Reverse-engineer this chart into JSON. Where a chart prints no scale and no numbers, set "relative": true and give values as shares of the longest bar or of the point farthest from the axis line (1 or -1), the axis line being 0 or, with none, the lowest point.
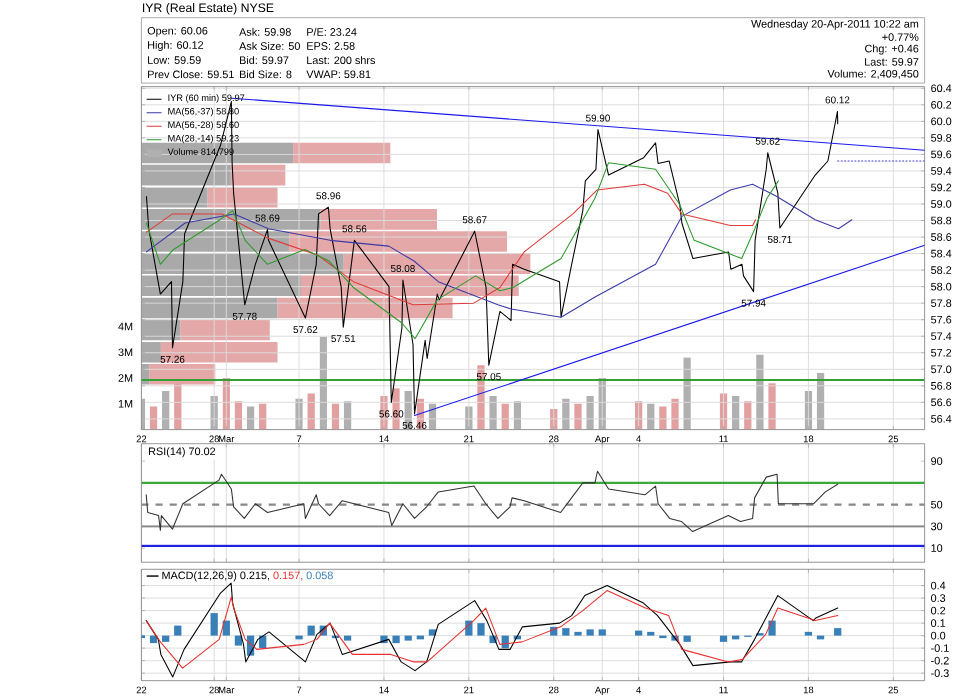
{
  "chart_data": [
    {
      "type": "line",
      "title": "IYR (Real Estate) NYSE",
      "annotations": [
        "Open: 60.06",
        "High: 60.12",
        "Low: 59.59",
        "Prev Close: 59.51",
        "Ask: 59.98",
        "Ask Size: 50",
        "Bid: 59.97",
        "Bid Size: 8",
        "P/E: 23.24",
        "EPS: 2.58",
        "Last: 200 shrs",
        "VWAP: 59.81",
        "Wednesday 20-Apr-2011 10:22 am",
        "+0.77%",
        "Chg: +0.46",
        "Last: 59.97",
        "Volume: 2,409,450",
        {
          "text": "57.26",
          "x": "2011-02-24T13:30",
          "y": 57.26
        },
        {
          "text": "57.78",
          "x": "2011-03-02T12:30",
          "y": 57.78
        },
        {
          "text": "58.69",
          "x": "2011-03-04T09:30",
          "y": 58.69
        },
        {
          "text": "57.62",
          "x": "2011-03-07T12:30",
          "y": 57.62
        },
        {
          "text": "58.96",
          "x": "2011-03-09T10:00",
          "y": 58.96
        },
        {
          "text": "57.51",
          "x": "2011-03-10T15:30",
          "y": 57.51
        },
        {
          "text": "58.56",
          "x": "2011-03-11T13:30",
          "y": 58.56
        },
        {
          "text": "56.60",
          "x": "2011-03-14T14:30",
          "y": 56.6
        },
        {
          "text": "58.08",
          "x": "2011-03-15T13:30",
          "y": 58.08
        },
        {
          "text": "56.46",
          "x": "2011-03-16T12:30",
          "y": 56.46
        },
        {
          "text": "58.67",
          "x": "2011-03-21T11:30",
          "y": 58.67
        },
        {
          "text": "57.05",
          "x": "2011-03-22T15:30",
          "y": 57.05
        },
        {
          "text": "59.90",
          "x": "2011-03-31T15:30",
          "y": 59.9
        },
        {
          "text": "57.94",
          "x": "2011-04-13T11:30",
          "y": 57.94
        },
        {
          "text": "59.62",
          "x": "2011-04-14T15:30",
          "y": 59.62
        },
        {
          "text": "58.71",
          "x": "2011-04-15T15:30",
          "y": 58.71
        },
        {
          "text": "60.12",
          "x": "2011-04-20T09:30",
          "y": 60.12
        }
      ],
      "xlim": [
        "2011-02-22",
        "2011-04-27T14:00"
      ],
      "ylim": [
        56.27,
        60.42
      ],
      "xticks": [
        {
          "value": "2011-02-22",
          "label": "22"
        },
        {
          "value": "2011-02-28",
          "label": "28"
        },
        {
          "value": "2011-03-01",
          "label": "Mar"
        },
        {
          "value": "2011-03-07",
          "label": "7"
        },
        {
          "value": "2011-03-14",
          "label": "14"
        },
        {
          "value": "2011-03-21",
          "label": "21"
        },
        {
          "value": "2011-03-28",
          "label": "28"
        },
        {
          "value": "2011-04-01",
          "label": "Apr"
        },
        {
          "value": "2011-04-04",
          "label": "4"
        },
        {
          "value": "2011-04-11",
          "label": "11"
        },
        {
          "value": "2011-04-18",
          "label": "18"
        },
        {
          "value": "2011-04-25",
          "label": "25"
        }
      ],
      "yticks": [
        56.4,
        56.6,
        56.8,
        {
          "value": 57,
          "label": "57.0"
        },
        57.2,
        57.4,
        57.6,
        57.8,
        {
          "value": 58,
          "label": "58.0"
        },
        58.2,
        58.4,
        58.6,
        58.8,
        {
          "value": 59,
          "label": "59.0"
        },
        59.2,
        59.4,
        59.6,
        59.8,
        {
          "value": 60,
          "label": "60.0"
        },
        60.2,
        60.4
      ],
      "y2lim": [
        0,
        13300000
      ],
      "y2ticks": [
        {
          "value": 1000000,
          "label": "1M"
        },
        {
          "value": 2000000,
          "label": "2M"
        },
        {
          "value": 3000000,
          "label": "3M"
        },
        {
          "value": 4000000,
          "label": "4M"
        }
      ],
      "grid": true,
      "legend": "top left",
      "ref_lines": [
        {
          "axis": "y",
          "value": 56.87,
          "color": "#33a033"
        }
      ],
      "series": [
        {
          "name": "IYR (60 min) 59.97",
          "type": "line",
          "color": "#000000",
          "x": [
            "2011-02-22T10:00",
            "2011-02-22T14:30",
            "2011-02-23T13:30",
            "2011-02-24T11:30",
            "2011-02-24T13:30",
            "2011-02-25T10:00",
            "2011-02-25T13:30",
            "2011-02-28T12:30",
            "2011-03-01T10:00",
            "2011-03-01T11:30",
            "2011-03-01T14:30",
            "2011-03-02T12:30",
            "2011-03-03T09:30",
            "2011-03-04T09:30",
            "2011-03-04T11:30",
            "2011-03-07T12:30",
            "2011-03-08T10:00",
            "2011-03-08T14:30",
            "2011-03-09T10:00",
            "2011-03-09T13:30",
            "2011-03-10T11:30",
            "2011-03-10T15:30",
            "2011-03-11T13:30",
            "2011-03-14T10:00",
            "2011-03-14T14:30",
            "2011-03-15T11:30",
            "2011-03-15T13:30",
            "2011-03-16T09:30",
            "2011-03-16T12:30",
            "2011-03-17T09:30",
            "2011-03-17T13:30",
            "2011-03-18T09:30",
            "2011-03-18T13:30",
            "2011-03-21T11:30",
            "2011-03-22T10:00",
            "2011-03-22T15:30",
            "2011-03-23T13:30",
            "2011-03-24T11:30",
            "2011-03-24T14:30",
            "2011-03-25T13:30",
            "2011-03-28T11:30",
            "2011-03-28T14:30",
            "2011-03-29T11:30",
            "2011-03-30T09:30",
            "2011-03-30T14:30",
            "2011-03-31T11:30",
            "2011-03-31T15:30",
            "2011-04-01T12:30",
            "2011-04-04T10:00",
            "2011-04-05T09:30",
            "2011-04-05T14:30",
            "2011-04-06T12:30",
            "2011-04-07T09:30",
            "2011-04-07T13:30",
            "2011-04-08T11:30",
            "2011-04-11T10:00",
            "2011-04-11T14:30",
            "2011-04-12T12:30",
            "2011-04-12T15:30",
            "2011-04-13T11:30",
            "2011-04-13T14:30",
            "2011-04-14T12:30",
            "2011-04-14T15:30",
            "2011-04-15T11:30",
            "2011-04-15T15:30",
            "2011-04-18T13:30",
            "2011-04-19T14:30",
            "2011-04-20T09:30",
            "2011-04-20T10:00"
          ],
          "values": [
            59.09,
            58.7,
            57.91,
            58.06,
            57.26,
            58.06,
            58.64,
            59.71,
            60.24,
            59.5,
            59.13,
            57.78,
            58.27,
            58.69,
            58.56,
            57.62,
            58.27,
            58.88,
            58.96,
            58.7,
            57.99,
            57.51,
            58.56,
            58.0,
            56.6,
            57.5,
            58.08,
            57.3,
            56.46,
            57.35,
            57.13,
            57.91,
            57.84,
            58.67,
            57.99,
            57.05,
            57.7,
            57.59,
            58.27,
            58.21,
            58.06,
            57.63,
            58.27,
            58.92,
            59.28,
            59.42,
            59.9,
            59.35,
            59.56,
            59.74,
            59.49,
            59.52,
            58.99,
            58.77,
            58.34,
            58.42,
            58.21,
            58.27,
            58.13,
            57.94,
            58.56,
            59.42,
            59.62,
            59.13,
            58.71,
            59.35,
            59.52,
            60.12,
            59.97
          ]
        },
        {
          "name": "MA(56,-37) 58.80",
          "type": "line",
          "color": "#3b3ba8",
          "x": [
            "2011-02-22T10:00",
            "2011-02-25T14:30",
            "2011-03-01T15:30",
            "2011-03-04T11:30",
            "2011-03-09T13:30",
            "2011-03-14T09:30",
            "2011-03-16T11:30",
            "2011-03-18T11:30",
            "2011-03-23T09:30",
            "2011-03-24T11:30",
            "2011-03-28T14:30",
            "2011-03-31T11:30",
            "2011-04-05T09:30",
            "2011-04-07T13:30",
            "2011-04-11T13:30",
            "2011-04-13T09:30",
            "2011-04-15T09:30",
            "2011-04-18T13:30",
            "2011-04-20T11:30",
            "2011-04-21T14:00"
          ],
          "values": [
            58.42,
            58.77,
            58.88,
            58.7,
            58.56,
            58.49,
            58.31,
            58.06,
            57.78,
            57.73,
            57.63,
            57.88,
            58.27,
            58.85,
            59.17,
            59.24,
            59.09,
            58.81,
            58.7,
            58.81
          ]
        },
        {
          "name": "MA(56,-28) 58.60",
          "type": "line",
          "color": "#e03a3a",
          "x": [
            "2011-02-22T10:00",
            "2011-02-24T13:30",
            "2011-02-28T15:30",
            "2011-03-04T09:30",
            "2011-03-08T13:30",
            "2011-03-11T11:30",
            "2011-03-16T09:30",
            "2011-03-21T09:30",
            "2011-03-23T13:30",
            "2011-03-25T13:30",
            "2011-03-29T14:00",
            "2011-03-31T14:00",
            "2011-04-04T11:30",
            "2011-04-06T09:30",
            "2011-04-07T13:30",
            "2011-04-11T13:30",
            "2011-04-13T09:30",
            "2011-04-13T15:30"
          ],
          "values": [
            58.66,
            58.88,
            58.88,
            58.59,
            58.38,
            58.06,
            57.78,
            57.8,
            57.99,
            58.42,
            58.88,
            59.17,
            59.24,
            59.13,
            58.88,
            58.74,
            58.74,
            58.81
          ]
        },
        {
          "name": "MA(28,-14) 59.23",
          "type": "line",
          "color": "#2e9a2e",
          "x": [
            "2011-02-22T10:00",
            "2011-02-23T13:30",
            "2011-02-24T15:30",
            "2011-02-28T11:30",
            "2011-03-01T12:30",
            "2011-03-02T13:30",
            "2011-03-04T09:30",
            "2011-03-07T11:30",
            "2011-03-09T11:30",
            "2011-03-11T11:30",
            "2011-03-15T11:30",
            "2011-03-16T13:30",
            "2011-03-18T09:30",
            "2011-03-21T13:30",
            "2011-03-23T13:30",
            "2011-03-24T15:30",
            "2011-03-28T14:30",
            "2011-03-31T09:30",
            "2011-04-01T12:30",
            "2011-04-05T09:30",
            "2011-04-07T09:30",
            "2011-04-08T14:00",
            "2011-04-12T12:00",
            "2011-04-13T14:00",
            "2011-04-14T14:00",
            "2011-04-15T12:30"
          ],
          "values": [
            58.77,
            58.27,
            58.45,
            58.81,
            58.92,
            58.56,
            58.27,
            58.45,
            58.31,
            57.99,
            57.56,
            57.37,
            57.84,
            58.13,
            57.95,
            57.99,
            58.34,
            59.07,
            59.5,
            59.42,
            58.99,
            58.56,
            58.34,
            58.7,
            59.07,
            59.28
          ]
        },
        {
          "name": "Volume 814,799",
          "type": "bar",
          "axis": "y2",
          "x": [
            "2011-02-22",
            "2011-02-23",
            "2011-02-24",
            "2011-02-25",
            "2011-02-28",
            "2011-03-01",
            "2011-03-02",
            "2011-03-03",
            "2011-03-04",
            "2011-03-07",
            "2011-03-08",
            "2011-03-09",
            "2011-03-10",
            "2011-03-11",
            "2011-03-14",
            "2011-03-15",
            "2011-03-16",
            "2011-03-17",
            "2011-03-18",
            "2011-03-21",
            "2011-03-22",
            "2011-03-23",
            "2011-03-24",
            "2011-03-25",
            "2011-03-28",
            "2011-03-29",
            "2011-03-30",
            "2011-03-31",
            "2011-04-01",
            "2011-04-04",
            "2011-04-05",
            "2011-04-06",
            "2011-04-07",
            "2011-04-08",
            "2011-04-11",
            "2011-04-12",
            "2011-04-13",
            "2011-04-14",
            "2011-04-15",
            "2011-04-18",
            "2011-04-19"
          ],
          "values": [
            1200000,
            900000,
            1500000,
            1800000,
            1300000,
            2000000,
            1100000,
            900000,
            1000000,
            1200000,
            1400000,
            3600000,
            1000000,
            1100000,
            1300000,
            1600000,
            1500000,
            1200000,
            1000000,
            900000,
            2500000,
            1300000,
            1000000,
            1100000,
            800000,
            1200000,
            1000000,
            1300000,
            2000000,
            1100000,
            1000000,
            900000,
            1200000,
            2800000,
            1400000,
            1300000,
            1100000,
            2900000,
            1800000,
            1500000,
            2200000
          ],
          "colors": [
            "#b0b0b0",
            "#e2a0a0",
            "#b0b0b0",
            "#e2a0a0",
            "#b0b0b0",
            "#e2a0a0",
            "#e2a0a0",
            "#b0b0b0",
            "#e2a0a0",
            "#b0b0b0",
            "#e2a0a0",
            "#b0b0b0",
            "#e2a0a0",
            "#b0b0b0",
            "#e2a0a0",
            "#e2a0a0",
            "#b0b0b0",
            "#e2a0a0",
            "#b0b0b0",
            "#b0b0b0",
            "#e2a0a0",
            "#b0b0b0",
            "#e2a0a0",
            "#b0b0b0",
            "#e2a0a0",
            "#b0b0b0",
            "#e2a0a0",
            "#b0b0b0",
            "#b0b0b0",
            "#e2a0a0",
            "#b0b0b0",
            "#e2a0a0",
            "#e2a0a0",
            "#b0b0b0",
            "#e2a0a0",
            "#b0b0b0",
            "#e2a0a0",
            "#b0b0b0",
            "#e2a0a0",
            "#b0b0b0",
            "#b0b0b0"
          ]
        },
        {
          "type": "line",
          "color": "#1a1aee",
          "x": [
            "2011-03-01T10:00",
            "2011-04-27T14:00"
          ],
          "values": [
            60.28,
            59.65
          ]
        },
        {
          "type": "line",
          "color": "#1a1aee",
          "x": [
            "2011-03-16T12:30",
            "2011-04-27T14:00"
          ],
          "values": [
            56.44,
            58.5
          ]
        },
        {
          "type": "line",
          "color": "#3b3bd0",
          "line_style": "dotted",
          "x": [
            "2011-04-20T10:00",
            "2011-04-27T14:00"
          ],
          "values": [
            59.52,
            59.52
          ]
        }
      ]
    },
    {
      "type": "bar",
      "orientation": "horizontal",
      "stacked": true,
      "relative": true,
      "tick_labels": false,
      "categories": [
        null,
        null,
        null,
        null,
        null,
        null,
        null,
        null,
        null,
        null,
        null
      ],
      "series": [
        {
          "color": "#a9a9a9",
          "values": [
            0.39,
            0.23,
            0.17,
            0.46,
            0.38,
            0.52,
            0.41,
            0.35,
            0.1,
            0.05,
            0.02
          ]
        },
        {
          "color": "#e5a8a8",
          "values": [
            0.25,
            0.14,
            0.18,
            0.3,
            0.56,
            0.48,
            0.56,
            0.45,
            0.23,
            0.3,
            0.17
          ]
        }
      ]
    },
    {
      "type": "line",
      "title": "RSI(14) 70.02",
      "tick_labels": "y",
      "xlim": [
        "2011-02-22",
        "2011-04-27T14:00"
      ],
      "ylim": [
        -3,
        106
      ],
      "xticks": [
        "2011-02-22",
        "2011-02-28",
        "2011-03-01",
        "2011-03-07",
        "2011-03-14",
        "2011-03-21",
        "2011-03-28",
        "2011-04-01",
        "2011-04-04",
        "2011-04-11",
        "2011-04-18",
        "2011-04-25"
      ],
      "yticks": [
        10,
        30,
        50,
        90
      ],
      "grid": "x",
      "ref_lines": [
        {
          "axis": "y",
          "value": 70,
          "color": "#3aa83a"
        },
        {
          "axis": "y",
          "value": 50,
          "color": "#888888",
          "line_style": "dashed"
        },
        {
          "axis": "y",
          "value": 30,
          "color": "#888888"
        },
        {
          "axis": "y",
          "value": 12,
          "color": "#2020e0"
        }
      ],
      "series": [
        {
          "color": "#333333",
          "x": [
            "2011-02-22T09:30",
            "2011-02-22T12:30",
            "2011-02-23T10:00",
            "2011-02-23T13:30",
            "2011-02-23T15:30",
            "2011-02-24T13:30",
            "2011-02-25T10:00",
            "2011-02-28T09:30",
            "2011-02-28T14:30",
            "2011-03-01T10:00",
            "2011-03-01T14:30",
            "2011-03-02T11:30",
            "2011-03-03T09:30",
            "2011-03-04T09:30",
            "2011-03-07T09:30",
            "2011-03-07T12:30",
            "2011-03-08T10:00",
            "2011-03-08T14:30",
            "2011-03-09T12:30",
            "2011-03-10T13:30",
            "2011-03-14T09:30",
            "2011-03-14T15:30",
            "2011-03-15T13:30",
            "2011-03-16T12:30",
            "2011-03-17T12:30",
            "2011-03-18T11:30",
            "2011-03-21T10:00",
            "2011-03-22T09:30",
            "2011-03-23T09:30",
            "2011-03-24T09:30",
            "2011-03-24T13:30",
            "2011-03-25T13:30",
            "2011-03-28T13:30",
            "2011-03-30T09:30",
            "2011-03-31T09:30",
            "2011-03-31T14:30",
            "2011-04-01T12:30",
            "2011-04-04T12:30",
            "2011-04-05T09:30",
            "2011-04-05T14:30",
            "2011-04-06T13:30",
            "2011-04-07T12:30",
            "2011-04-08T11:00",
            "2011-04-11T09:30",
            "2011-04-12T09:30",
            "2011-04-13T09:30",
            "2011-04-13T13:30",
            "2011-04-14T12:30",
            "2011-04-15T10:00",
            "2011-04-15T12:30",
            "2011-04-18T10:00",
            "2011-04-19T09:30",
            "2011-04-20T10:00"
          ],
          "values": [
            59,
            42.7,
            39.9,
            26.3,
            39.9,
            27.5,
            50.8,
            72.5,
            78,
            64.4,
            48,
            37.3,
            50.8,
            42.7,
            50.8,
            37.3,
            59,
            50.8,
            39.9,
            53.6,
            42.7,
            30.7,
            50.8,
            37.3,
            48,
            61.7,
            67.1,
            50.8,
            37.3,
            48,
            56.2,
            53.6,
            42.7,
            70,
            70,
            80.7,
            64.4,
            59,
            67.1,
            50.8,
            37.3,
            34.5,
            25.2,
            39.9,
            34.5,
            37.3,
            56.2,
            75.3,
            78,
            50.8,
            50.8,
            61.7,
            68.8
          ]
        }
      ]
    },
    {
      "type": "line",
      "legend": "top left",
      "xlim": [
        "2011-02-22",
        "2011-04-27T14:00"
      ],
      "ylim": [
        -0.36,
        0.53
      ],
      "xticks": [
        {
          "value": "2011-02-22",
          "label": "22"
        },
        {
          "value": "2011-02-28",
          "label": "28"
        },
        {
          "value": "2011-03-01",
          "label": "Mar"
        },
        {
          "value": "2011-03-07",
          "label": "7"
        },
        {
          "value": "2011-03-14",
          "label": "14"
        },
        {
          "value": "2011-03-21",
          "label": "21"
        },
        {
          "value": "2011-03-28",
          "label": "28"
        },
        {
          "value": "2011-04-01",
          "label": "Apr"
        },
        {
          "value": "2011-04-04",
          "label": "4"
        },
        {
          "value": "2011-04-11",
          "label": "11"
        },
        {
          "value": "2011-04-18",
          "label": "18"
        },
        {
          "value": "2011-04-25",
          "label": "25"
        }
      ],
      "yticks": [
        -0.3,
        -0.2,
        -0.1,
        {
          "value": 0,
          "label": "0.0"
        },
        0.1,
        0.2,
        0.3,
        0.4
      ],
      "grid": true,
      "series": [
        {
          "name": "0.058",
          "type": "bar",
          "color": "#3a80b8",
          "x": [
            "2011-02-22",
            "2011-02-23",
            "2011-02-24",
            "2011-02-25",
            "2011-02-28",
            "2011-03-01",
            "2011-03-02",
            "2011-03-03",
            "2011-03-04",
            "2011-03-07",
            "2011-03-08",
            "2011-03-09",
            "2011-03-10",
            "2011-03-11",
            "2011-03-14",
            "2011-03-15",
            "2011-03-16",
            "2011-03-17",
            "2011-03-18",
            "2011-03-21",
            "2011-03-22",
            "2011-03-23",
            "2011-03-24",
            "2011-03-25",
            "2011-03-28",
            "2011-03-29",
            "2011-03-30",
            "2011-03-31",
            "2011-04-01",
            "2011-04-04",
            "2011-04-05",
            "2011-04-06",
            "2011-04-07",
            "2011-04-08",
            "2011-04-11",
            "2011-04-12",
            "2011-04-13",
            "2011-04-14",
            "2011-04-15",
            "2011-04-18",
            "2011-04-19",
            "2011-04-20T10:00"
          ],
          "values": [
            -0.02,
            -0.06,
            -0.05,
            0.08,
            0.18,
            0.12,
            -0.08,
            -0.16,
            -0.1,
            -0.03,
            0.08,
            0.08,
            -0.02,
            -0.04,
            -0.06,
            -0.06,
            -0.04,
            -0.03,
            0.05,
            0.12,
            0.1,
            -0.06,
            -0.1,
            -0.03,
            0.07,
            0.06,
            0.03,
            0.05,
            0.05,
            0.04,
            0.03,
            -0.02,
            -0.04,
            -0.05,
            -0.05,
            -0.03,
            -0.01,
            0.02,
            0.12,
            0.03,
            -0.03,
            0.06
          ]
        },
        {
          "name": "MACD(12,26,9) 0.215,",
          "type": "line",
          "color": "#000000",
          "x": [
            "2011-02-22T09:30",
            "2011-02-23T09:30",
            "2011-02-23T14:30",
            "2011-02-24T14:00",
            "2011-02-25T12:30",
            "2011-02-28T12:30",
            "2011-03-01T09:30",
            "2011-03-01T12:30",
            "2011-03-02T10:00",
            "2011-03-02T14:30",
            "2011-03-03T14:30",
            "2011-03-04T12:30",
            "2011-03-07T12:30",
            "2011-03-08T11:30",
            "2011-03-09T13:30",
            "2011-03-10T13:30",
            "2011-03-14T09:30",
            "2011-03-15T10:00",
            "2011-03-16T13:30",
            "2011-03-17T12:30",
            "2011-03-18T11:30",
            "2011-03-21T11:30",
            "2011-03-22T11:30",
            "2011-03-23T11:30",
            "2011-03-24T09:30",
            "2011-03-25T10:00",
            "2011-03-28T11:30",
            "2011-03-29T11:30",
            "2011-03-30T13:30",
            "2011-04-01T09:30",
            "2011-04-04T09:30",
            "2011-04-05T13:30",
            "2011-04-07T09:30",
            "2011-04-08T11:30",
            "2011-04-11T13:30",
            "2011-04-12T11:30",
            "2011-04-13T13:30",
            "2011-04-15T11:30",
            "2011-04-18T09:30",
            "2011-04-18T14:30",
            "2011-04-20T10:00"
          ],
          "values": [
            0.12,
            -0.03,
            -0.15,
            -0.33,
            -0.11,
            0.34,
            0.42,
            0.26,
            -0.07,
            -0.21,
            -0.03,
            0.03,
            -0.21,
            0.01,
            0.1,
            -0.15,
            -0.03,
            -0.21,
            -0.28,
            -0.21,
            0.09,
            0.28,
            0.12,
            -0.11,
            -0.11,
            0.07,
            0.1,
            0.16,
            0.32,
            0.4,
            0.26,
            0.16,
            -0.07,
            -0.24,
            -0.21,
            -0.21,
            -0.03,
            0.32,
            0.12,
            0.14,
            0.22
          ]
        },
        {
          "name": "0.157,",
          "type": "line",
          "color": "#e83030",
          "x": [
            "2011-02-22T09:30",
            "2011-02-23T13:30",
            "2011-02-25T09:30",
            "2011-02-28T10:00",
            "2011-03-01T10:00",
            "2011-03-01T14:30",
            "2011-03-02T13:30",
            "2011-03-03T12:30",
            "2011-03-07T09:30",
            "2011-03-08T11:30",
            "2011-03-09T12:30",
            "2011-03-11T09:30",
            "2011-03-14T13:30",
            "2011-03-16T11:30",
            "2011-03-17T13:30",
            "2011-03-21T09:30",
            "2011-03-22T09:30",
            "2011-03-23T13:30",
            "2011-03-25T09:30",
            "2011-03-28T13:30",
            "2011-03-30T09:30",
            "2011-04-01T09:30",
            "2011-04-04T13:30",
            "2011-04-06T11:30",
            "2011-04-07T13:30",
            "2011-04-11T09:30",
            "2011-04-12T13:30",
            "2011-04-14T11:30",
            "2011-04-15T11:30",
            "2011-04-18T13:30",
            "2011-04-20T10:00"
          ],
          "values": [
            0.12,
            -0.05,
            -0.26,
            -0.03,
            0.31,
            0.22,
            -0.03,
            -0.11,
            -0.07,
            -0.03,
            0.1,
            -0.15,
            -0.15,
            -0.21,
            -0.21,
            0.12,
            0.22,
            -0.07,
            -0.05,
            0.07,
            0.2,
            0.36,
            0.22,
            0.16,
            -0.11,
            -0.21,
            -0.19,
            0.01,
            0.22,
            0.12,
            0.16
          ]
        }
      ]
    }
  ]
}
